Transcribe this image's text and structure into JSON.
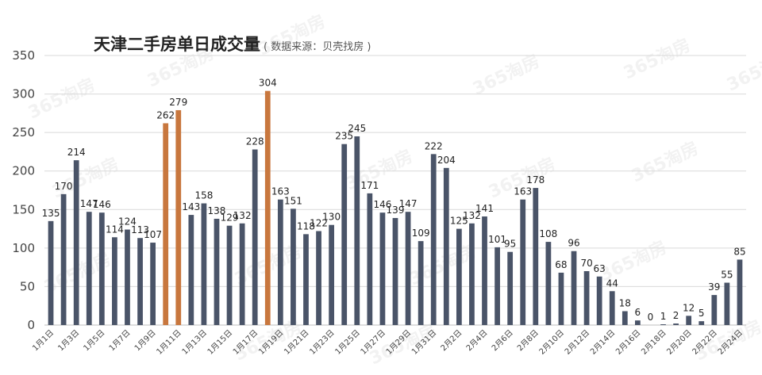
{
  "chart_data": {
    "type": "bar",
    "title": "天津二手房单日成交量",
    "subtitle": "( 数据来源：贝壳找房 )",
    "xlabel": "",
    "ylabel": "",
    "ylim": [
      0,
      350
    ],
    "yticks": [
      0,
      50,
      100,
      150,
      200,
      250,
      300,
      350
    ],
    "grid": true,
    "legend": "none",
    "watermark": "365淘房",
    "colors": {
      "default": "#4a5468",
      "highlight": "#c8773e"
    },
    "highlight_categories": [
      "1月10日",
      "1月11日",
      "1月18日"
    ],
    "categories": [
      "1月1日",
      "1月2日",
      "1月3日",
      "1月4日",
      "1月5日",
      "1月6日",
      "1月7日",
      "1月8日",
      "1月9日",
      "1月10日",
      "1月11日",
      "1月12日",
      "1月13日",
      "1月14日",
      "1月15日",
      "1月16日",
      "1月17日",
      "1月18日",
      "1月19日",
      "1月20日",
      "1月21日",
      "1月22日",
      "1月23日",
      "1月24日",
      "1月25日",
      "1月26日",
      "1月27日",
      "1月28日",
      "1月29日",
      "1月30日",
      "1月31日",
      "2月1日",
      "2月2日",
      "2月3日",
      "2月4日",
      "2月5日",
      "2月6日",
      "2月7日",
      "2月8日",
      "2月9日",
      "2月10日",
      "2月11日",
      "2月12日",
      "2月13日",
      "2月14日",
      "2月15日",
      "2月16日",
      "2月17日",
      "2月18日",
      "2月19日",
      "2月20日",
      "2月21日",
      "2月22日",
      "2月23日",
      "2月24日"
    ],
    "x_tick_labels": [
      "1月1日",
      "1月3日",
      "1月5日",
      "1月7日",
      "1月9日",
      "1月11日",
      "1月13日",
      "1月15日",
      "1月17日",
      "1月19日",
      "1月21日",
      "1月23日",
      "1月25日",
      "1月27日",
      "1月29日",
      "1月31日",
      "2月2日",
      "2月4日",
      "2月6日",
      "2月8日",
      "2月10日",
      "2月12日",
      "2月14日",
      "2月16日",
      "2月18日",
      "2月20日",
      "2月22日",
      "2月24日"
    ],
    "values": [
      135,
      170,
      214,
      147,
      146,
      114,
      124,
      113,
      107,
      262,
      279,
      143,
      158,
      138,
      129,
      132,
      228,
      304,
      163,
      151,
      118,
      122,
      130,
      235,
      245,
      171,
      146,
      139,
      147,
      109,
      222,
      204,
      125,
      132,
      141,
      101,
      95,
      163,
      178,
      108,
      68,
      96,
      70,
      63,
      44,
      18,
      6,
      0,
      1,
      2,
      12,
      5,
      39,
      55,
      85
    ]
  }
}
